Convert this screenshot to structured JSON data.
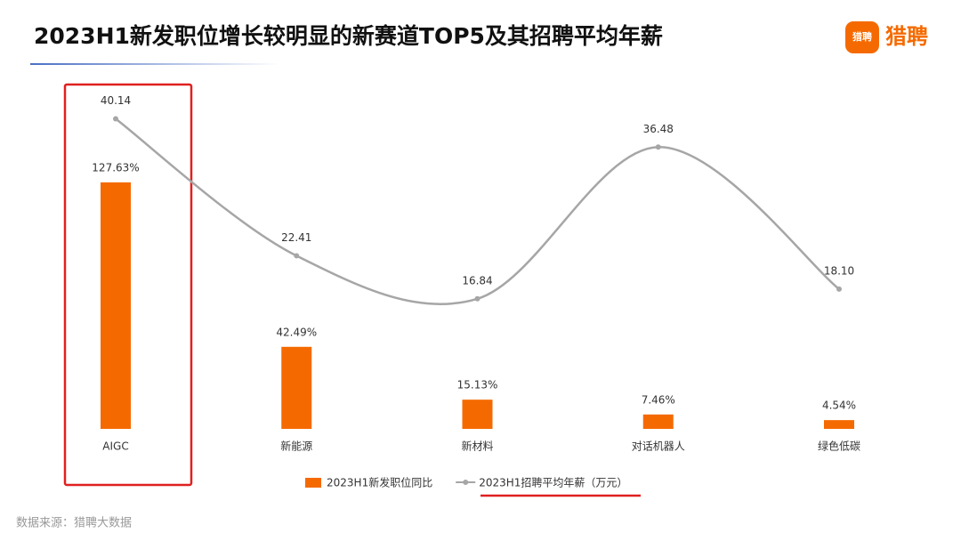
{
  "chart_data": {
    "type": "bar-line",
    "title": "2023H1新发职位增长较明显的新赛道TOP5及其招聘平均年薪",
    "categories": [
      "AIGC",
      "新能源",
      "新材料",
      "对话机器人",
      "绿色低碳"
    ],
    "series": [
      {
        "name": "2023H1新发职位同比",
        "type": "bar",
        "color": "#f56a00",
        "values": [
          127.63,
          42.49,
          15.13,
          7.46,
          4.54
        ],
        "value_labels": [
          "127.63%",
          "42.49%",
          "15.13%",
          "7.46%",
          "4.54%"
        ]
      },
      {
        "name": "2023H1招聘平均年薪（万元）",
        "type": "line",
        "axis": "y2",
        "color": "#a6a6a6",
        "values": [
          40.14,
          22.41,
          16.84,
          36.48,
          18.1
        ],
        "value_labels": [
          "40.14",
          "22.41",
          "16.84",
          "36.48",
          "18.10"
        ]
      }
    ],
    "ylim": [
      0,
      176
    ],
    "y2lim": [
      0,
      44
    ],
    "grid": false,
    "legend": "bottom"
  },
  "logo": {
    "icon_text": "猎聘",
    "text": "猎聘"
  },
  "source": "数据来源：猎聘大数据"
}
